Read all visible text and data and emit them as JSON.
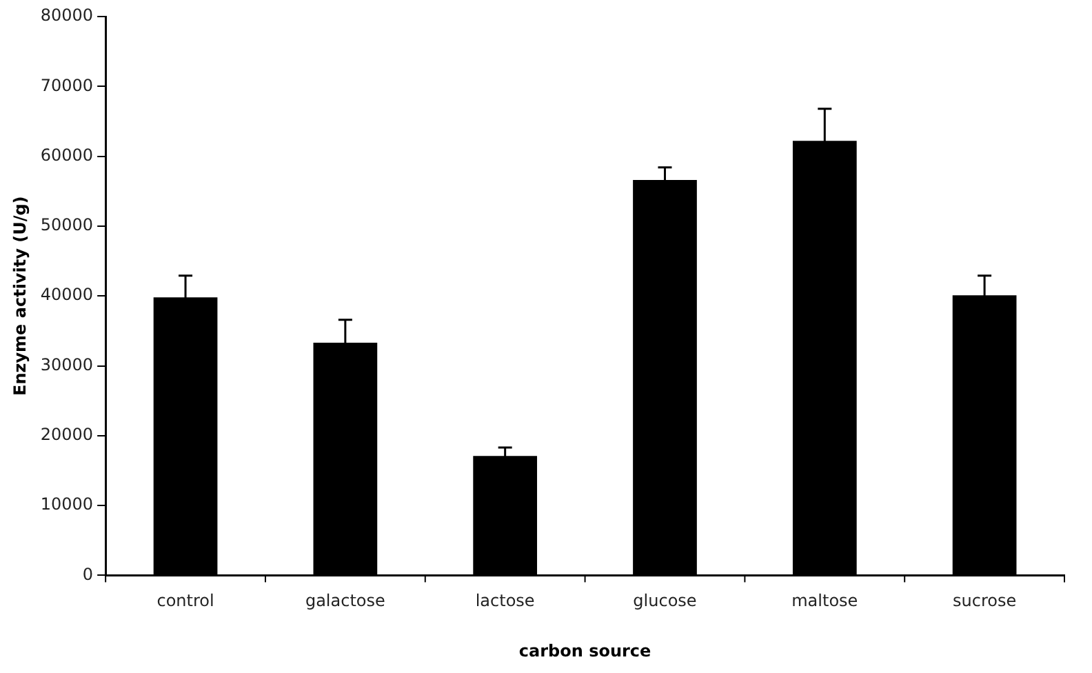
{
  "chart_data": {
    "type": "bar",
    "xlabel": "carbon source",
    "ylabel": "Enzyme activity (U/g)",
    "categories": [
      "control",
      "galactose",
      "lactose",
      "glucose",
      "maltose",
      "sucrose"
    ],
    "values": [
      39800,
      33300,
      17100,
      56600,
      62200,
      40100
    ],
    "errors": [
      3100,
      3300,
      1200,
      1800,
      4600,
      2800
    ],
    "color": "#000000",
    "ylim": [
      0,
      80000
    ],
    "yticks": [
      0,
      10000,
      20000,
      30000,
      40000,
      50000,
      60000,
      70000,
      80000
    ],
    "grid": false,
    "legend": false
  }
}
